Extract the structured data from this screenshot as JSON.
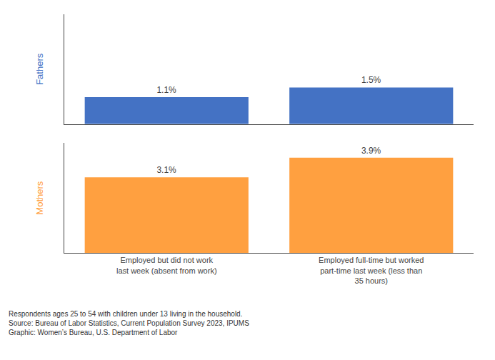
{
  "chart_data": {
    "type": "bar",
    "categories": [
      "Employed but did not work\nlast week (absent from work)",
      "Employed full-time but worked\npart-time last week (less than\n35 hours)"
    ],
    "series": [
      {
        "name": "Fathers",
        "color": "#4472C4",
        "values": [
          1.1,
          1.5
        ],
        "value_labels": [
          "1.1%",
          "1.5%"
        ]
      },
      {
        "name": "Mothers",
        "color": "#FFA040",
        "values": [
          3.1,
          3.9
        ],
        "value_labels": [
          "3.1%",
          "3.9%"
        ]
      }
    ],
    "ylim": [
      0,
      4.5
    ],
    "data_labels": true,
    "tick_labels": "x",
    "grid": false,
    "annotations": [
      "Respondents ages 25 to 54 with children under 13 living in the household.",
      "Source: Bureau of Labor Statistics, Current Population Survey 2023, IPUMS",
      "Graphic: Women’s Bureau, U.S. Department of Labor"
    ]
  }
}
